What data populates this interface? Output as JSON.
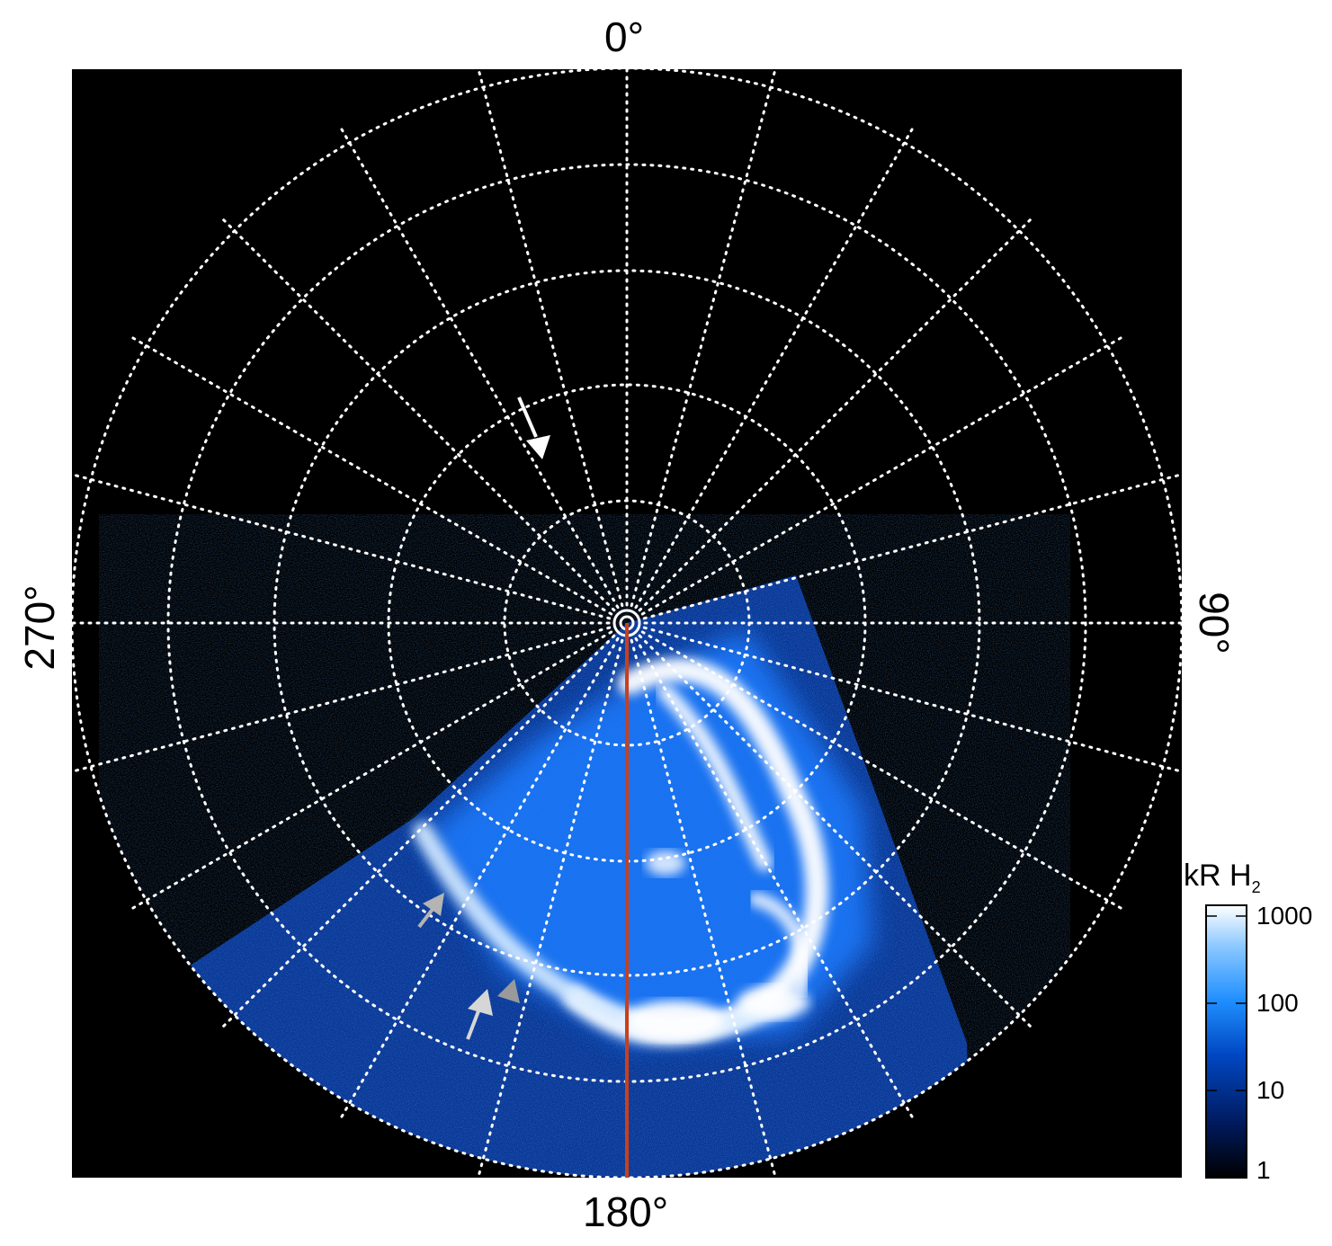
{
  "angle_labels": {
    "top": "0°",
    "right": "90°",
    "bottom": "180°",
    "left": "270°"
  },
  "colorbar": {
    "title_prefix": "kR H",
    "title_subscript": "2",
    "scale": "log",
    "ticks": [
      "1000",
      "100",
      "10",
      "1"
    ],
    "gradient_colors": [
      "#000000",
      "#001a5e",
      "#0047c2",
      "#1f8fff",
      "#8cc8ff",
      "#ffffff"
    ]
  },
  "colors": {
    "background": "#000000",
    "grid": "#ffffff",
    "meridian_line": "#c8401c",
    "arrow_white": "#ffffff",
    "arrow_gray": "#b4b4b4"
  },
  "grid": {
    "style": "dotted",
    "rings": 5,
    "meridian_step_deg": 15
  },
  "annotations": {
    "white_arrows": 1,
    "gray_arrows": 3
  }
}
